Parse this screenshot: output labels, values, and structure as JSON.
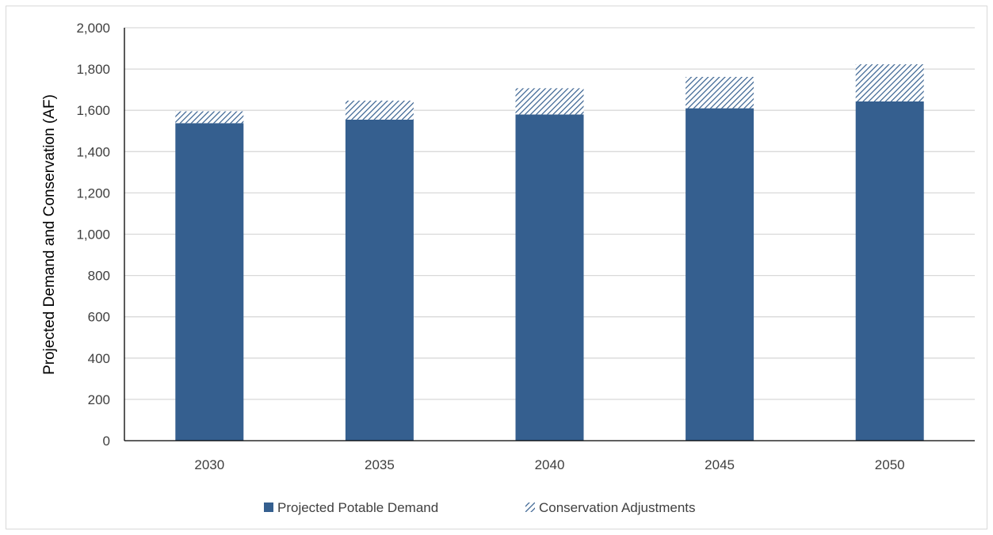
{
  "chart_data": {
    "type": "bar",
    "stacked": true,
    "categories": [
      "2030",
      "2035",
      "2040",
      "2045",
      "2050"
    ],
    "series": [
      {
        "name": "Projected Potable Demand",
        "values": [
          1538,
          1555,
          1580,
          1610,
          1643
        ],
        "color": "#355f8f",
        "pattern": "solid"
      },
      {
        "name": "Conservation Adjustments",
        "values": [
          57,
          92,
          127,
          152,
          180
        ],
        "color": "#355f8f",
        "pattern": "diagonal-hatch"
      }
    ],
    "title": "",
    "xlabel": "",
    "ylabel": "Projected  Demand and Conservation (AF)",
    "ylim": [
      0,
      2000
    ],
    "yticks": [
      0,
      200,
      400,
      600,
      800,
      1000,
      1200,
      1400,
      1600,
      1800,
      2000
    ],
    "ytick_labels": [
      "0",
      "200",
      "400",
      "600",
      "800",
      "1,000",
      "1,200",
      "1,400",
      "1,600",
      "1,800",
      "2,000"
    ],
    "grid": true,
    "legend_position": "bottom"
  }
}
